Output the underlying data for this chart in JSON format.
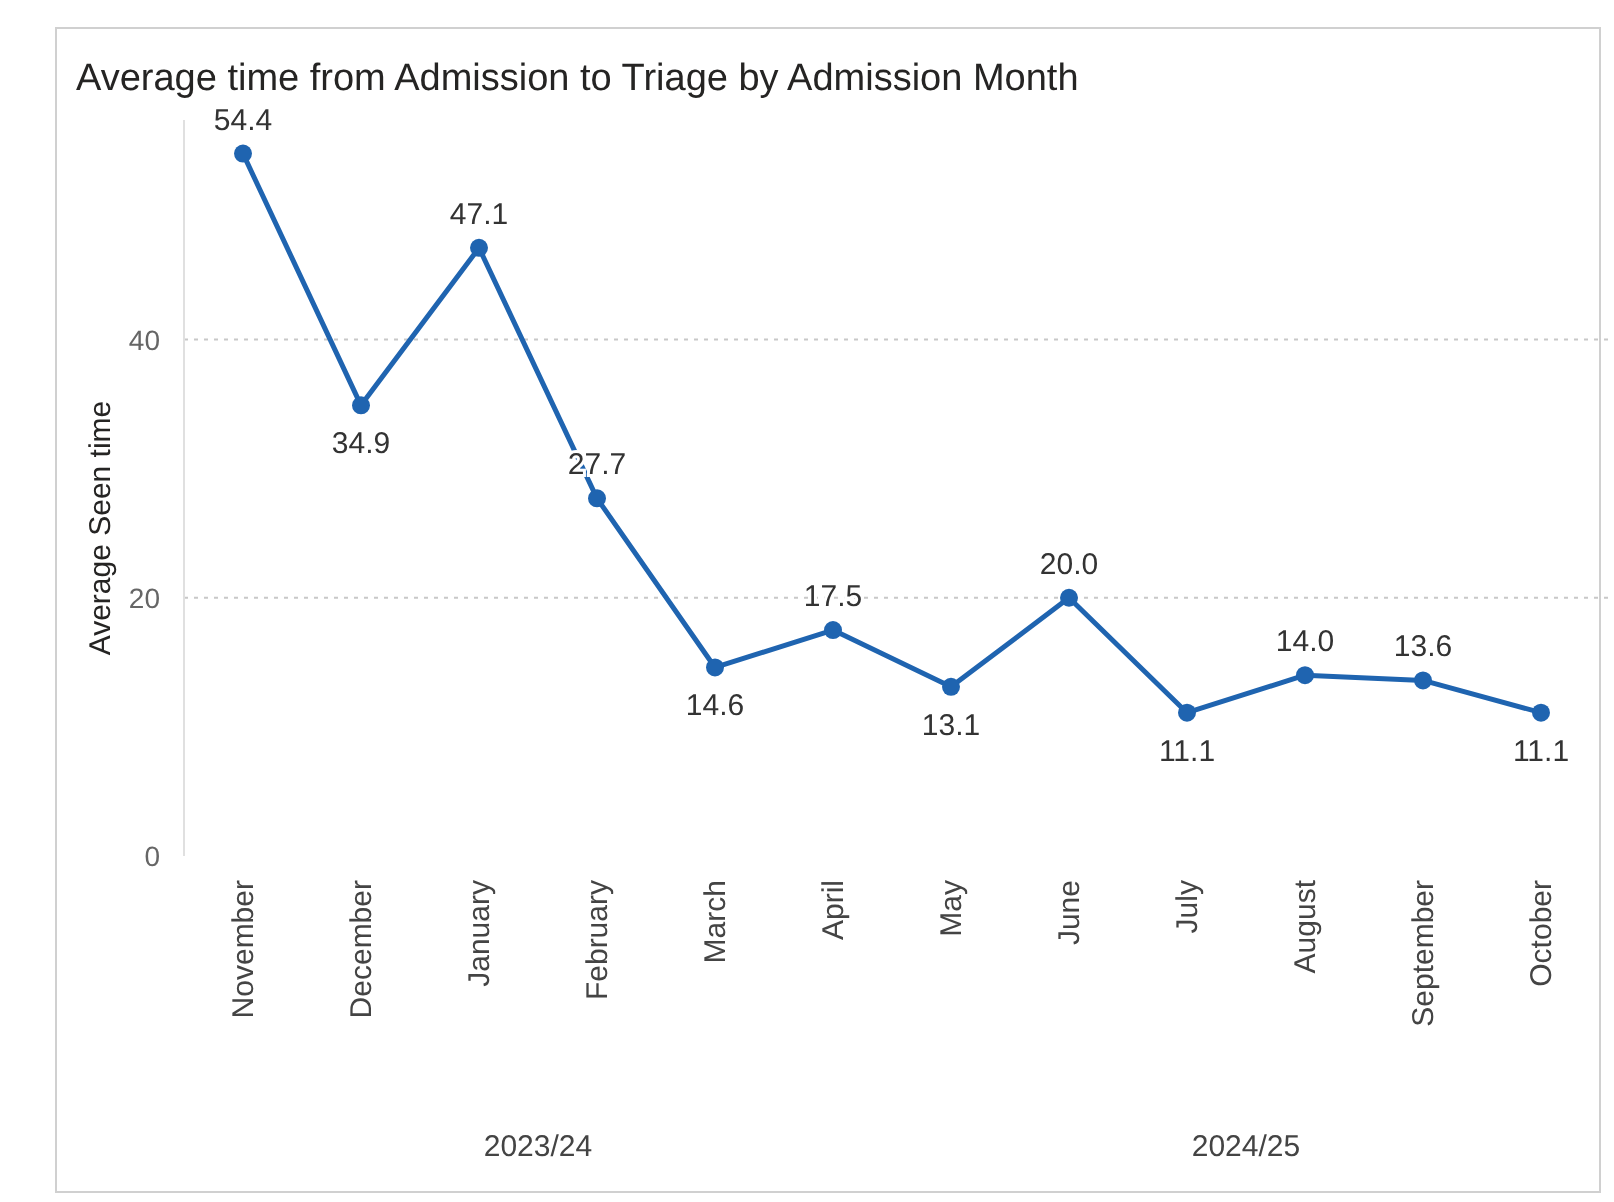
{
  "chart_data": {
    "type": "line",
    "title": "Average time from Admission to Triage by Admission Month",
    "ylabel": "Average Seen time",
    "categories": [
      "November",
      "December",
      "January",
      "February",
      "March",
      "April",
      "May",
      "June",
      "July",
      "August",
      "September",
      "October"
    ],
    "series": [
      {
        "color": "#1f64b0",
        "values": [
          54.4,
          34.9,
          47.1,
          27.7,
          14.6,
          17.5,
          13.1,
          20.0,
          11.1,
          14.0,
          13.6,
          11.1
        ]
      }
    ],
    "ylim": [
      0,
      57
    ],
    "yticks": [
      0,
      20,
      40
    ],
    "grid": "y",
    "marker": "circle",
    "line_style": "solid",
    "value_labels": [
      "54.4",
      "34.9",
      "47.1",
      "27.7",
      "14.6",
      "17.5",
      "13.1",
      "20.0",
      "11.1",
      "14.0",
      "13.6",
      "11.1"
    ],
    "annotations": [
      "2023/24",
      "2024/25"
    ]
  }
}
